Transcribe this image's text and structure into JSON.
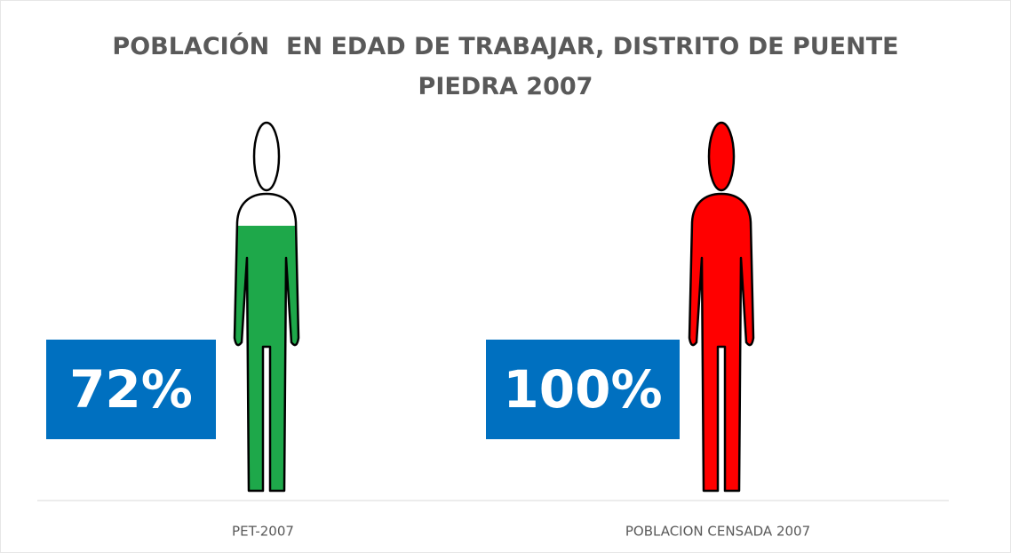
{
  "chart_data": {
    "type": "pictograph",
    "title": "POBLACIÓN  EN EDAD DE TRABAJAR, DISTRITO DE PUENTE PIEDRA 2007",
    "categories": [
      "PET-2007",
      "POBLACION CENSADA 2007"
    ],
    "values": [
      72,
      100
    ],
    "value_labels": [
      "72%",
      "100%"
    ],
    "colors": [
      "#1ea84a",
      "#ff0000"
    ],
    "label_color": "#0070c0",
    "ylim": [
      0,
      100
    ]
  }
}
